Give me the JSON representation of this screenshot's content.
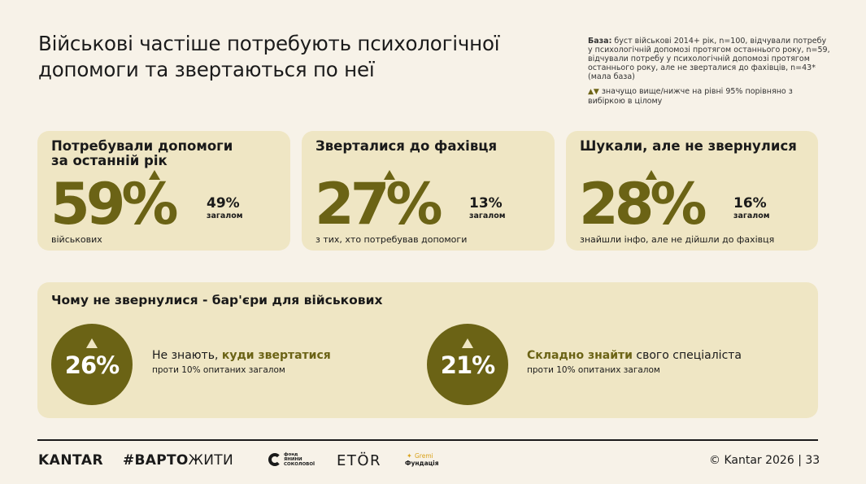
{
  "title": "Військові частіше потребують психологічної допомоги та звертаються по неї",
  "base_note": {
    "label": "База:",
    "text": " буст військові 2014+ рік, n=100, відчували потребу у психологічній допомозі протягом останнього року, n=59, відчували потребу у психологічній допомозі протягом останнього року, але не зверталися до фахівців, n=43* (мала база)"
  },
  "significance_note": {
    "icons": "▲▼",
    "text": " значущо вище/нижче на рівні 95% порівняно з вибіркою в цілому"
  },
  "cards": [
    {
      "title": "Потребували допомоги за останній рік",
      "value": "59%",
      "compare_value": "49%",
      "compare_label": "загалом",
      "subtitle": "військових",
      "significance": "up"
    },
    {
      "title": "Зверталися до фахівця",
      "value": "27%",
      "compare_value": "13%",
      "compare_label": "загалом",
      "subtitle": "з тих, хто потребував допомоги",
      "significance": "up"
    },
    {
      "title": "Шукали, але не звернулися",
      "value": "28%",
      "compare_value": "16%",
      "compare_label": "загалом",
      "subtitle": "знайшли інфо, але не дійшли до фахівця",
      "significance": "up"
    }
  ],
  "barriers": {
    "title": "Чому не звернулися - бар'єри для військових",
    "items": [
      {
        "value": "26%",
        "text_before": "Не знають, ",
        "text_highlight": "куди звертатися",
        "text_after": "",
        "subtitle": "проти 10% опитаних загалом"
      },
      {
        "value": "21%",
        "text_before": "",
        "text_highlight": "Складно знайти",
        "text_after": " свого спеціаліста",
        "subtitle": "проти 10% опитаних загалом"
      }
    ]
  },
  "footer": {
    "logo_kantar": "KANTAR",
    "logo_varto_bold": "#ВАРТО",
    "logo_varto_rest": "ЖИТИ",
    "logo_fond": "фонд\nЯНИНИ\nСОКОЛОВОЇ",
    "logo_etor": "ETÖR",
    "logo_gremi_top": "Gremi",
    "logo_gremi_bottom": "Фундація",
    "copyright": "© Kantar 2026 | 33"
  },
  "colors": {
    "accent": "#6b6315",
    "card_bg": "#efe6c4",
    "page_bg": "#f7f2e8"
  }
}
